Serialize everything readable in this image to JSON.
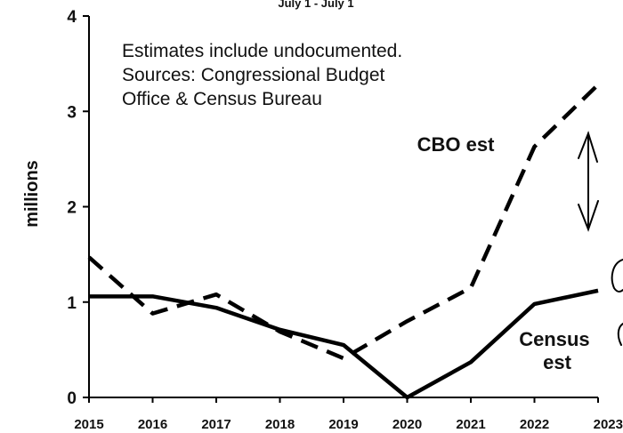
{
  "chart_data": {
    "type": "line",
    "subtitle": "July 1 - July 1",
    "ylabel": "millions",
    "xlabel": "",
    "ylim": [
      0,
      4
    ],
    "yticks": [
      0,
      1,
      2,
      3,
      4
    ],
    "x": [
      "2015",
      "2016",
      "2017",
      "2018",
      "2019",
      "2020",
      "2021",
      "2022",
      "2023"
    ],
    "grid": false,
    "annotation_lines": [
      "Estimates include undocumented.",
      "Sources: Congressional Budget",
      "Office & Census Bureau"
    ],
    "series": [
      {
        "name": "Census est",
        "style": "solid",
        "color": "#000000",
        "label_lines": [
          "Census",
          "est"
        ],
        "values": [
          1.06,
          1.06,
          0.94,
          0.71,
          0.55,
          0.0,
          0.37,
          0.98,
          1.12
        ]
      },
      {
        "name": "CBO est",
        "style": "dashed",
        "color": "#000000",
        "label_lines": [
          "CBO est"
        ],
        "values": [
          1.47,
          0.88,
          1.08,
          0.69,
          0.41,
          0.8,
          1.15,
          2.63,
          3.28
        ]
      }
    ]
  }
}
